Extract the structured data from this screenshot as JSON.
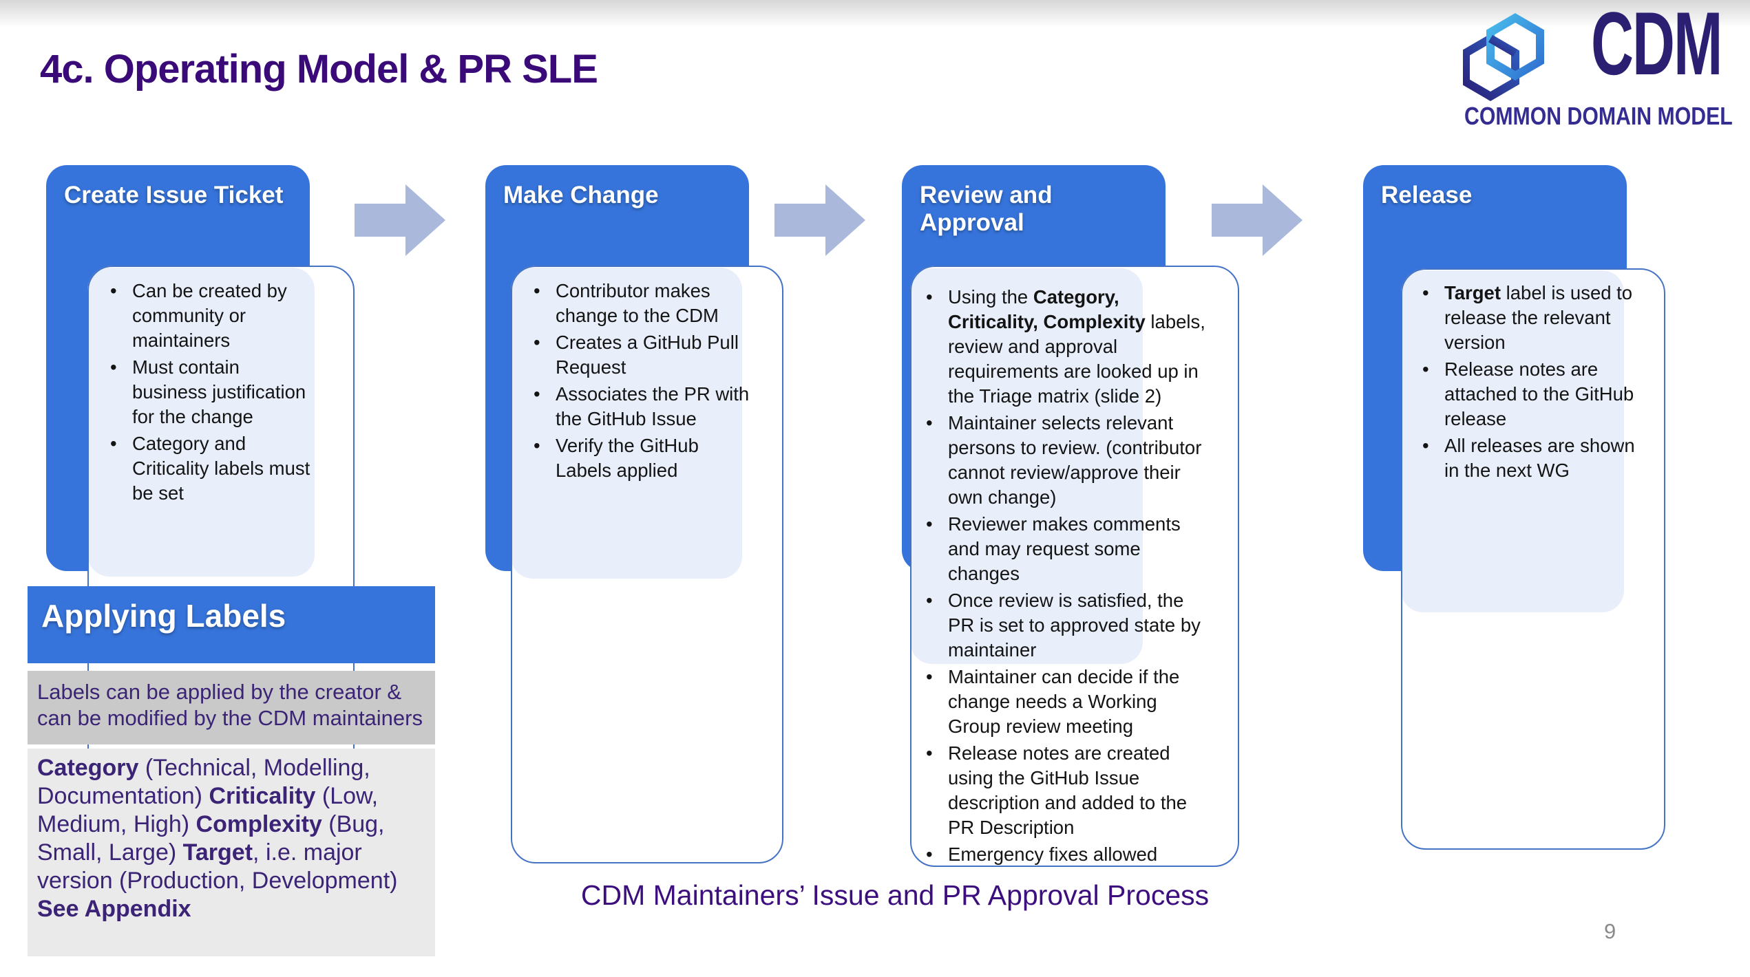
{
  "slide": {
    "title": "4c. Operating Model & PR SLE",
    "caption": "CDM Maintainers’ Issue and PR Approval Process",
    "page_number": "9"
  },
  "logo": {
    "name": "CDM",
    "subtitle": "COMMON DOMAIN MODEL"
  },
  "icons": {
    "flow_arrow": "arrow-right-icon",
    "logo_mark": "interlocked-hexagons-icon"
  },
  "colors": {
    "accent_blue": "#3674DB",
    "light_blue_fill": "#E8EEFA",
    "outline_blue": "#4472C4",
    "arrow_blue_gray": "#AAB8DC",
    "title_purple": "#3A0A79",
    "label_text_purple": "#3B2376",
    "note_band_gray": "#C9C9C9",
    "items_band_gray": "#EAEAEA",
    "logo_indigo": "#2B1F71"
  },
  "columns": [
    {
      "title": "Create Issue Ticket",
      "bullets": [
        [
          {
            "text": "Can be created by community or maintainers"
          }
        ],
        [
          {
            "text": "Must contain business justification for the change"
          }
        ],
        [
          {
            "text": "Category and Criticality labels must be set"
          }
        ]
      ]
    },
    {
      "title": "Make Change",
      "bullets": [
        [
          {
            "text": "Contributor makes change to the CDM"
          }
        ],
        [
          {
            "text": "Creates a GitHub Pull Request"
          }
        ],
        [
          {
            "text": "Associates the PR with the GitHub Issue"
          }
        ],
        [
          {
            "text": "Verify the GitHub Labels applied"
          }
        ]
      ]
    },
    {
      "title": "Review and Approval",
      "bullets": [
        [
          {
            "text": "Using the "
          },
          {
            "text": "Category, Criticality, Complexity",
            "bold": true
          },
          {
            "text": " labels, review and approval requirements are looked up in the Triage matrix (slide 2)"
          }
        ],
        [
          {
            "text": "Maintainer selects relevant persons to review. (contributor cannot review/approve their own change)"
          }
        ],
        [
          {
            "text": "Reviewer makes comments and may request some changes"
          }
        ],
        [
          {
            "text": "Once review is satisfied, the PR is set to approved state by maintainer"
          }
        ],
        [
          {
            "text": "Maintainer can decide if the change needs a Working Group review meeting"
          }
        ],
        [
          {
            "text": "Release notes are created using the GitHub Issue description and added to the PR Description"
          }
        ],
        [
          {
            "text": "Emergency fixes allowed"
          }
        ]
      ]
    },
    {
      "title": "Release",
      "bullets": [
        [
          {
            "text": "Target",
            "bold": true
          },
          {
            "text": " label is used to release the relevant version"
          }
        ],
        [
          {
            "text": "Release notes are attached to the GitHub release"
          }
        ],
        [
          {
            "text": "All releases are shown in the next WG"
          }
        ]
      ]
    }
  ],
  "labels_panel": {
    "title": "Applying Labels",
    "note": "Labels can be applied by the creator & can be modified by the CDM maintainers",
    "items": [
      [
        {
          "text": "Category",
          "em": true
        },
        {
          "text": " (Technical, Modelling, Documentation)"
        }
      ],
      [
        {
          "text": "Criticality",
          "em": true
        },
        {
          "text": " (Low, Medium, High)"
        }
      ],
      [
        {
          "text": "Complexity",
          "em": true
        },
        {
          "text": " (Bug, Small, Large)"
        }
      ],
      [
        {
          "text": "Target",
          "em": true
        },
        {
          "text": ", i.e. major version (Production, Development)"
        }
      ],
      [
        {
          "text": "See Appendix",
          "em": true
        }
      ]
    ]
  }
}
